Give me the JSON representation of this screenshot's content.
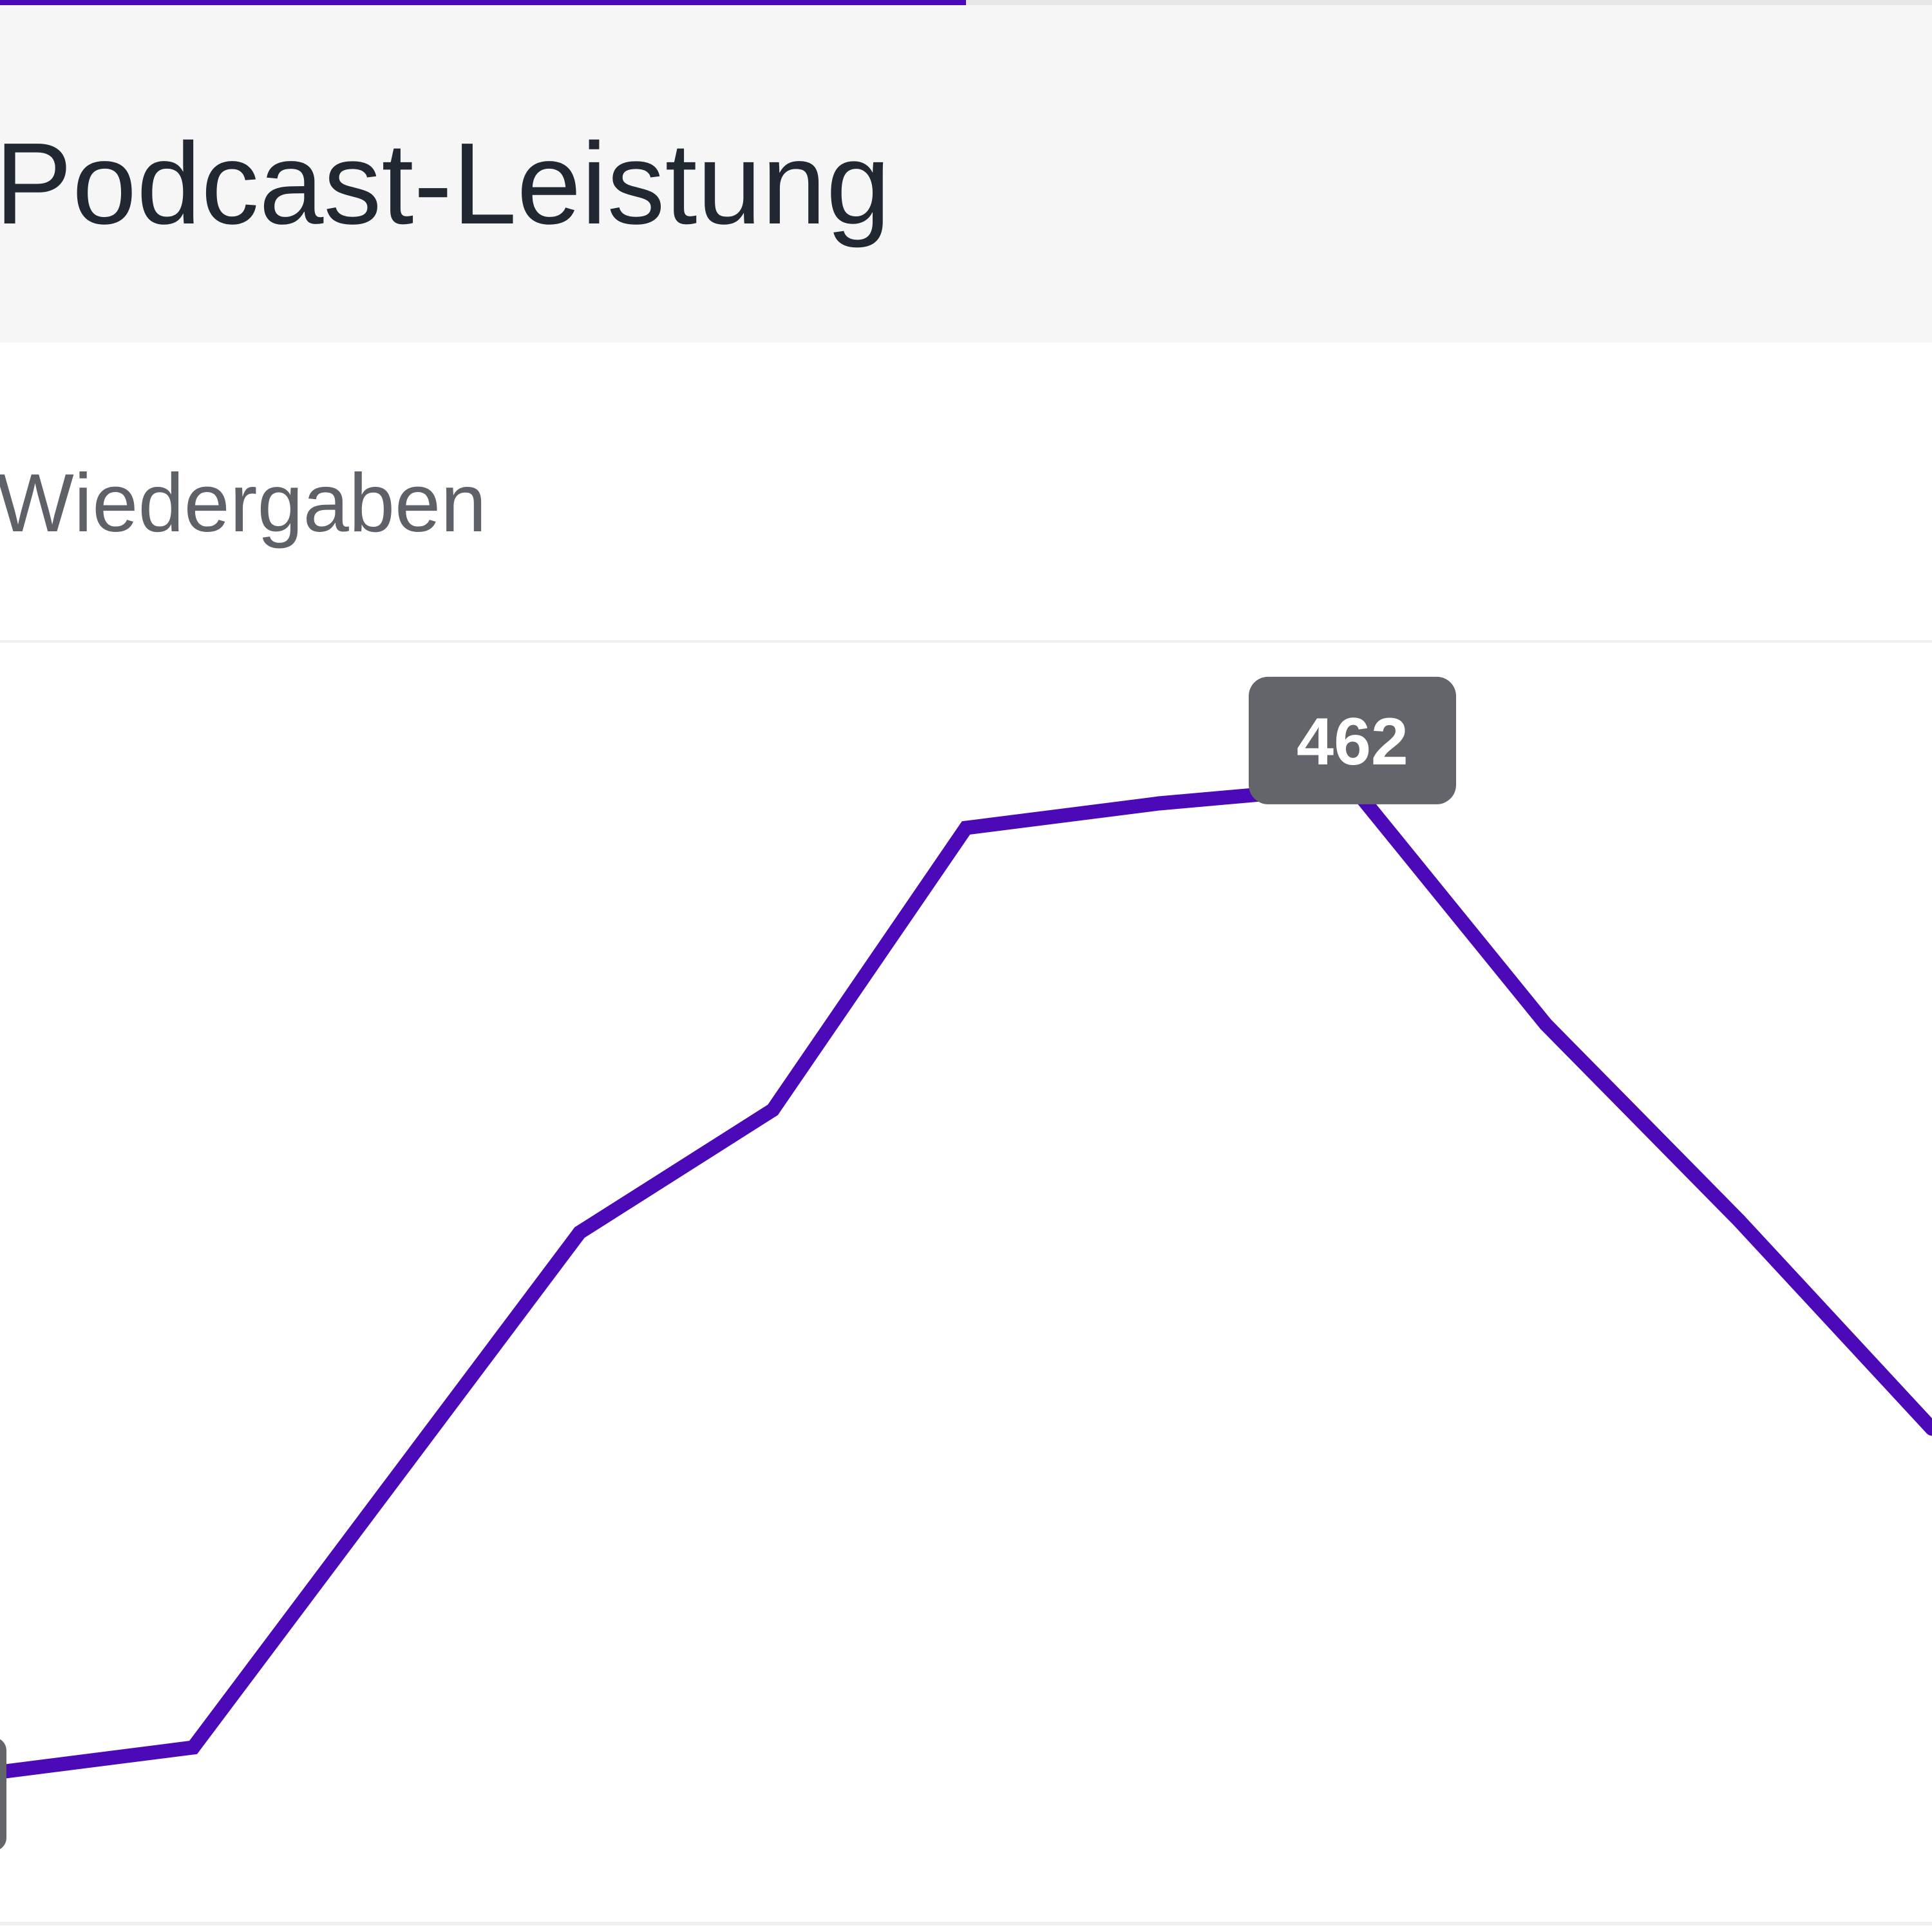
{
  "header": {
    "title": "Podcast-Leistung",
    "progress_fraction": 0.5
  },
  "metric": {
    "label": "Wiedergaben"
  },
  "colors": {
    "accent": "#4b09b8",
    "tooltip_bg": "#63656b",
    "title_text": "#212832",
    "label_text": "#5f6168",
    "header_bg": "#f6f6f7"
  },
  "chart_data": {
    "type": "line",
    "title": "",
    "xlabel": "",
    "ylabel": "Wiedergaben",
    "ylim": [
      0,
      520
    ],
    "grid": false,
    "series": [
      {
        "name": "Wiedergaben",
        "values": [
          60,
          70,
          175,
          280,
          330,
          445,
          455,
          462,
          365,
          285,
          200
        ]
      }
    ],
    "highlight": {
      "index": 7,
      "label": "462"
    }
  }
}
